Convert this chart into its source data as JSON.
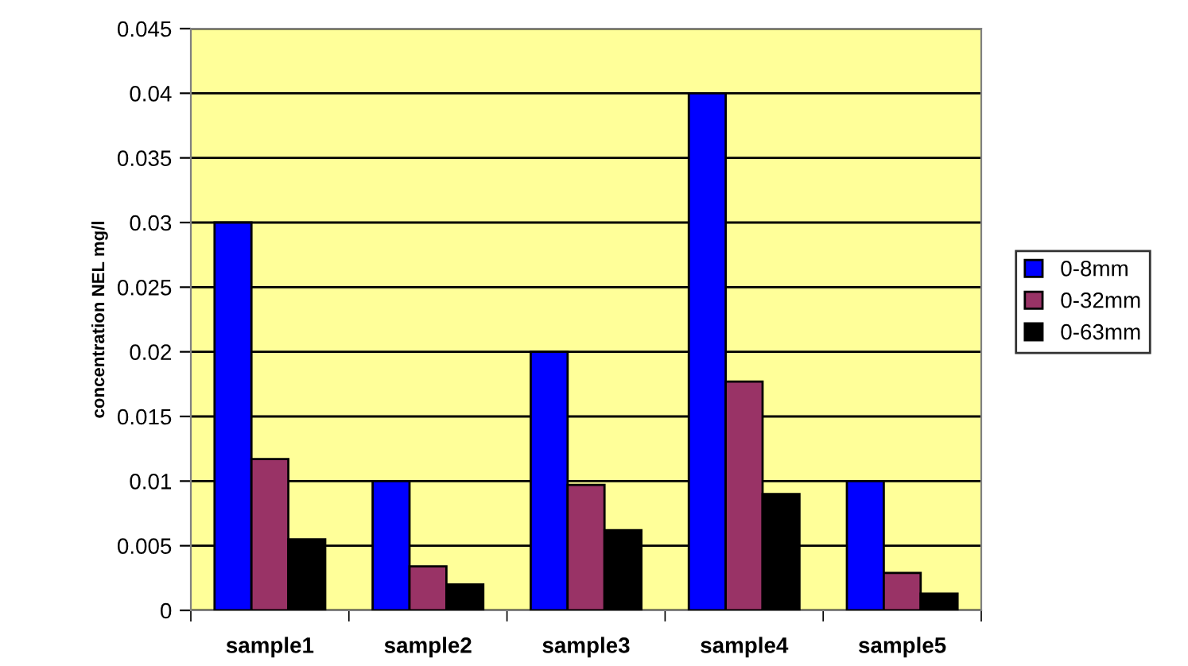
{
  "chart_data": {
    "type": "bar",
    "ylabel": "concentration NEL mg/l",
    "categories": [
      "sample1",
      "sample2",
      "sample3",
      "sample4",
      "sample5"
    ],
    "series": [
      {
        "name": "0-8mm",
        "color": "#0000ff",
        "values": [
          0.03,
          0.01,
          0.02,
          0.04,
          0.01
        ]
      },
      {
        "name": "0-32mm",
        "color": "#993366",
        "values": [
          0.0117,
          0.0034,
          0.0097,
          0.0177,
          0.0029
        ]
      },
      {
        "name": "0-63mm",
        "color": "#000000",
        "values": [
          0.0055,
          0.002,
          0.0062,
          0.009,
          0.0013
        ]
      }
    ],
    "ylim": [
      0,
      0.045
    ],
    "yticks": [
      0,
      0.005,
      0.01,
      0.015,
      0.02,
      0.025,
      0.03,
      0.035,
      0.04,
      0.045
    ],
    "grid": "y",
    "legend": "right"
  }
}
